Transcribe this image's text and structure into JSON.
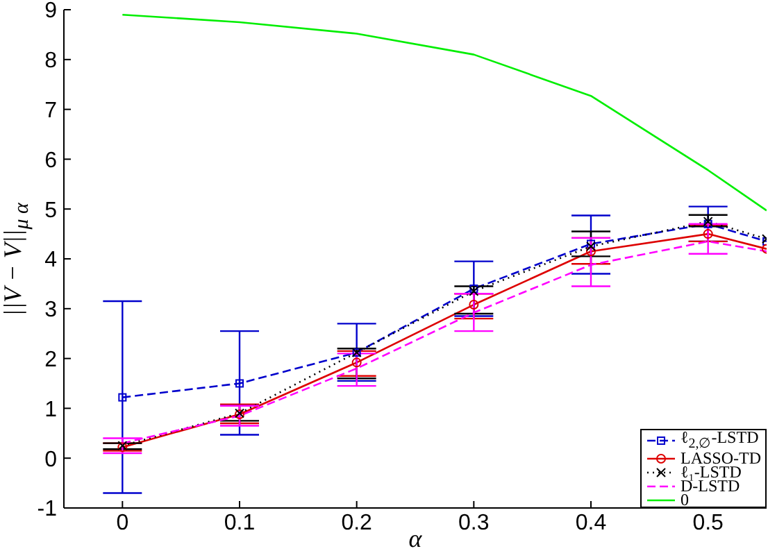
{
  "chart_data": {
    "type": "line",
    "xlabel": "α",
    "ylabel": "||V − V||$_{μ α}$",
    "x": [
      0,
      0.1,
      0.2,
      0.3,
      0.4,
      0.5,
      0.55
    ],
    "xlim": [
      -0.05,
      0.55
    ],
    "xticks": [
      0,
      0.1,
      0.2,
      0.3,
      0.4,
      0.5
    ],
    "ylim": [
      -1,
      9
    ],
    "yticks": [
      -1,
      0,
      1,
      2,
      3,
      4,
      5,
      6,
      7,
      8,
      9
    ],
    "legend": "bottom right",
    "series": [
      {
        "name": "ℓ$_{2,∅}$-LSTD",
        "color": "#0000cc",
        "line_style": "dashed",
        "marker": "square",
        "values": [
          1.22,
          1.5,
          2.12,
          3.4,
          4.3,
          4.7,
          4.35
        ],
        "errors": [
          [
            -0.7,
            3.15
          ],
          [
            0.47,
            2.55
          ],
          [
            1.55,
            2.7
          ],
          [
            2.85,
            3.95
          ],
          [
            3.7,
            4.87
          ],
          [
            4.35,
            5.05
          ],
          null
        ]
      },
      {
        "name": "LASSO-TD",
        "color": "#dd0000",
        "line_style": "solid",
        "marker": "circle",
        "values": [
          0.22,
          0.88,
          1.92,
          3.08,
          4.15,
          4.5,
          4.2
        ],
        "errors": [
          [
            0.15,
            0.3
          ],
          [
            0.7,
            1.08
          ],
          [
            1.65,
            2.15
          ],
          [
            2.8,
            3.3
          ],
          [
            3.9,
            4.42
          ],
          [
            4.35,
            4.68
          ],
          null
        ]
      },
      {
        "name": "ℓ₁-LSTD",
        "color": "#000000",
        "line_style": "dotted",
        "marker": "cross",
        "values": [
          0.25,
          0.9,
          2.12,
          3.35,
          4.25,
          4.75,
          4.4
        ],
        "errors": [
          [
            0.18,
            0.3
          ],
          [
            0.75,
            1.05
          ],
          [
            1.6,
            2.2
          ],
          [
            2.9,
            3.45
          ],
          [
            4.05,
            4.55
          ],
          [
            4.65,
            4.88
          ],
          null
        ]
      },
      {
        "name": "D-LSTD",
        "color": "#ff00ff",
        "line_style": "dashed",
        "marker": "none",
        "values": [
          0.3,
          0.85,
          1.8,
          2.92,
          3.88,
          4.35,
          4.15
        ],
        "errors": [
          [
            0.1,
            0.4
          ],
          [
            0.65,
            1.05
          ],
          [
            1.45,
            2.1
          ],
          [
            2.55,
            3.3
          ],
          [
            3.45,
            4.42
          ],
          [
            4.1,
            4.7
          ],
          null
        ]
      },
      {
        "name": "0",
        "color": "#00ee00",
        "line_style": "solid",
        "marker": "none",
        "values": [
          8.9,
          8.75,
          8.52,
          8.1,
          7.27,
          5.78,
          4.97
        ]
      }
    ]
  }
}
